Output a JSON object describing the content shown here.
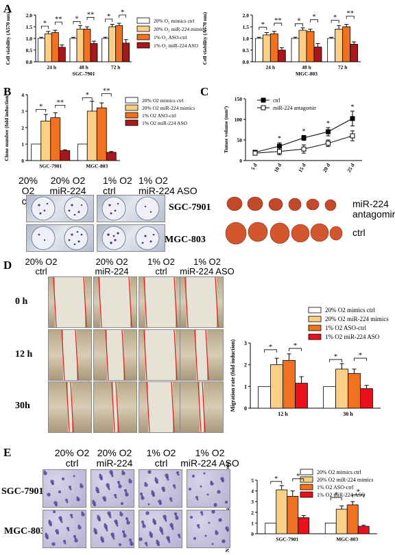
{
  "panels": {
    "A": "A",
    "B": "B",
    "C": "C",
    "D": "D",
    "E": "E"
  },
  "legend4_A": [
    "20% O₂ mimics ctrl",
    "20% O₂ miR-224 mimics",
    "1% O₂ ASO-ctrl",
    "1% O₂ miR-224 ASO"
  ],
  "legend4": [
    "20% O2 mimics ctrl",
    "20% O2 miR-224 mimics",
    "1% O2 ASO-ctrl",
    "1% O2 miR-224 ASO"
  ],
  "colors": {
    "mimics_ctrl": "#ffffff",
    "mimics": "#fbcf85",
    "aso_ctrl": "#f0711f",
    "aso": "#a8171c",
    "aso_bright": "#e8101a"
  },
  "sig": {
    "one": "*",
    "two": "**"
  },
  "labelsB": {
    "top": [
      "20% O2",
      "20% O2",
      "1% O2",
      "1% O2"
    ],
    "bottom": [
      "ctrl",
      "miR-224",
      "ctrl",
      "miR-224 ASO"
    ],
    "row1": "SGC-7901",
    "row2": "MGC-803"
  },
  "labelsC": {
    "row1a": "miR-224",
    "row1b": "antagomir",
    "row2": "ctrl"
  },
  "labelsD": {
    "cols": [
      [
        "20% O2",
        "ctrl"
      ],
      [
        "20% O2",
        "miR-224"
      ],
      [
        "1% O2",
        "ctrl"
      ],
      [
        "1% O2",
        "miR-224 ASO"
      ]
    ],
    "rows": [
      "0 h",
      "12 h",
      "30h"
    ]
  },
  "labelsE": {
    "cols": [
      [
        "20% O2",
        "ctrl"
      ],
      [
        "20% O2",
        "miR-224"
      ],
      [
        "1% O2",
        "ctrl"
      ],
      [
        "1% O2",
        "miR-224 ASO"
      ]
    ],
    "rows": [
      "SGC-7901",
      "MGC-803"
    ]
  },
  "chart_data": [
    {
      "id": "A1",
      "type": "bar",
      "categories": [
        "24 h",
        "48 h",
        "72 h"
      ],
      "xlabel": "SGC-7901",
      "ylabel": "Cell viability (A570 nm)",
      "ylim": [
        0,
        2.0
      ],
      "yticks": [
        0.0,
        0.5,
        1.0,
        1.5,
        2.0
      ],
      "series": [
        {
          "name": "20% O₂ mimics ctrl",
          "values": [
            1.0,
            1.0,
            1.0
          ],
          "err": [
            0.05,
            0.05,
            0.05
          ]
        },
        {
          "name": "20% O₂ miR-224 mimics",
          "values": [
            1.2,
            1.4,
            1.5
          ],
          "err": [
            0.1,
            0.15,
            0.1
          ]
        },
        {
          "name": "1% O₂ ASO-ctrl",
          "values": [
            1.25,
            1.4,
            1.55
          ],
          "err": [
            0.1,
            0.1,
            0.1
          ]
        },
        {
          "name": "1% O₂ miR-224 ASO",
          "values": [
            0.62,
            0.78,
            0.8
          ],
          "err": [
            0.1,
            0.1,
            0.15
          ]
        }
      ],
      "annotations": [
        [
          "*",
          "**"
        ],
        [
          "*",
          "**"
        ],
        [
          "*",
          "*"
        ]
      ]
    },
    {
      "id": "A2",
      "type": "bar",
      "categories": [
        "24 h",
        "48 h",
        "72 h"
      ],
      "xlabel": "MGC-803",
      "ylabel": "Cell viability (A570 nm)",
      "ylim": [
        0,
        2.0
      ],
      "yticks": [
        0.0,
        0.5,
        1.0,
        1.5,
        2.0
      ],
      "series": [
        {
          "name": "20% O₂ mimics ctrl",
          "values": [
            1.0,
            1.0,
            1.0
          ],
          "err": [
            0.05,
            0.05,
            0.05
          ]
        },
        {
          "name": "20% O₂ miR-224 mimics",
          "values": [
            1.15,
            1.35,
            1.4
          ],
          "err": [
            0.1,
            0.1,
            0.15
          ]
        },
        {
          "name": "1% O₂ ASO-ctrl",
          "values": [
            1.2,
            1.3,
            1.5
          ],
          "err": [
            0.1,
            0.1,
            0.1
          ]
        },
        {
          "name": "1% O₂ miR-224 ASO",
          "values": [
            0.5,
            0.63,
            0.75
          ],
          "err": [
            0.1,
            0.15,
            0.1
          ]
        }
      ],
      "annotations": [
        [
          "*",
          "**"
        ],
        [
          "*",
          "*"
        ],
        [
          "*",
          "**"
        ]
      ]
    },
    {
      "id": "B",
      "type": "bar",
      "categories": [
        "SGC-7901",
        "MGC-803"
      ],
      "ylabel": "Clone number (fold induction)",
      "ylim": [
        0,
        4
      ],
      "yticks": [
        0,
        1,
        2,
        3,
        4
      ],
      "series": [
        {
          "name": "20% O2 mimics ctrl",
          "values": [
            1.0,
            1.0
          ],
          "err": [
            0.0,
            0.0
          ]
        },
        {
          "name": "20% O2 miR-224 mimics",
          "values": [
            2.4,
            3.0
          ],
          "err": [
            0.4,
            0.6
          ]
        },
        {
          "name": "1% O2 ASO-ctrl",
          "values": [
            2.6,
            3.2
          ],
          "err": [
            0.3,
            0.3
          ]
        },
        {
          "name": "1% O2 miR-224 ASO",
          "values": [
            0.6,
            0.5
          ],
          "err": [
            0.05,
            0.05
          ]
        }
      ],
      "annotations": [
        [
          "*",
          "**"
        ],
        [
          "*",
          "**"
        ]
      ]
    },
    {
      "id": "C",
      "type": "line",
      "x": [
        "5 d",
        "10 d",
        "15 d",
        "20 d",
        "25 d"
      ],
      "ylabel": "Tumor volume (mm³)",
      "ylim": [
        0,
        150
      ],
      "yticks": [
        0,
        50,
        100,
        150
      ],
      "series": [
        {
          "name": "ctrl",
          "values": [
            20,
            35,
            55,
            70,
            102
          ],
          "err": [
            3,
            8,
            6,
            10,
            18
          ]
        },
        {
          "name": "miR-224 antagomir",
          "values": [
            18,
            22,
            28,
            42,
            60
          ],
          "err": [
            3,
            8,
            10,
            8,
            12
          ]
        }
      ],
      "annotations": [
        "",
        "*",
        "*",
        "*",
        "*"
      ]
    },
    {
      "id": "D",
      "type": "bar",
      "categories": [
        "12 h",
        "30 h"
      ],
      "ylabel": "Migration rate (fold induction)",
      "ylim": [
        0,
        3
      ],
      "yticks": [
        0,
        1,
        2,
        3
      ],
      "series": [
        {
          "name": "20% O2 mimics ctrl",
          "values": [
            1.0,
            1.0
          ],
          "err": [
            0,
            0
          ]
        },
        {
          "name": "20% O2 miR-224 mimics",
          "values": [
            2.0,
            1.8
          ],
          "err": [
            0.3,
            0.25
          ]
        },
        {
          "name": "1% O2 ASO-ctrl",
          "values": [
            2.2,
            1.6
          ],
          "err": [
            0.3,
            0.2
          ]
        },
        {
          "name": "1% O2 miR-224 ASO",
          "values": [
            1.15,
            0.9
          ],
          "err": [
            0.3,
            0.15
          ]
        }
      ],
      "annotations": [
        [
          "*",
          "*"
        ],
        [
          "*",
          "*"
        ]
      ]
    },
    {
      "id": "E",
      "type": "bar",
      "categories": [
        "SGC-7901",
        "MGC-803"
      ],
      "ylabel": "Number of invading cells (fold induction)",
      "ylim": [
        0,
        5
      ],
      "yticks": [
        0,
        1,
        2,
        3,
        4,
        5
      ],
      "series": [
        {
          "name": "20% O2 mimics ctrl",
          "values": [
            1.0,
            1.0
          ],
          "err": [
            0,
            0
          ]
        },
        {
          "name": "20% O2 miR-224 mimics",
          "values": [
            4.1,
            2.3
          ],
          "err": [
            0.4,
            0.3
          ]
        },
        {
          "name": "1% O2 ASO-ctrl",
          "values": [
            3.5,
            2.7
          ],
          "err": [
            0.5,
            0.3
          ]
        },
        {
          "name": "1% O2 miR-224 ASO",
          "values": [
            1.5,
            0.7
          ],
          "err": [
            0.2,
            0.1
          ]
        }
      ],
      "annotations": [
        [
          "*",
          "*"
        ],
        [
          "*",
          "*"
        ]
      ]
    }
  ]
}
